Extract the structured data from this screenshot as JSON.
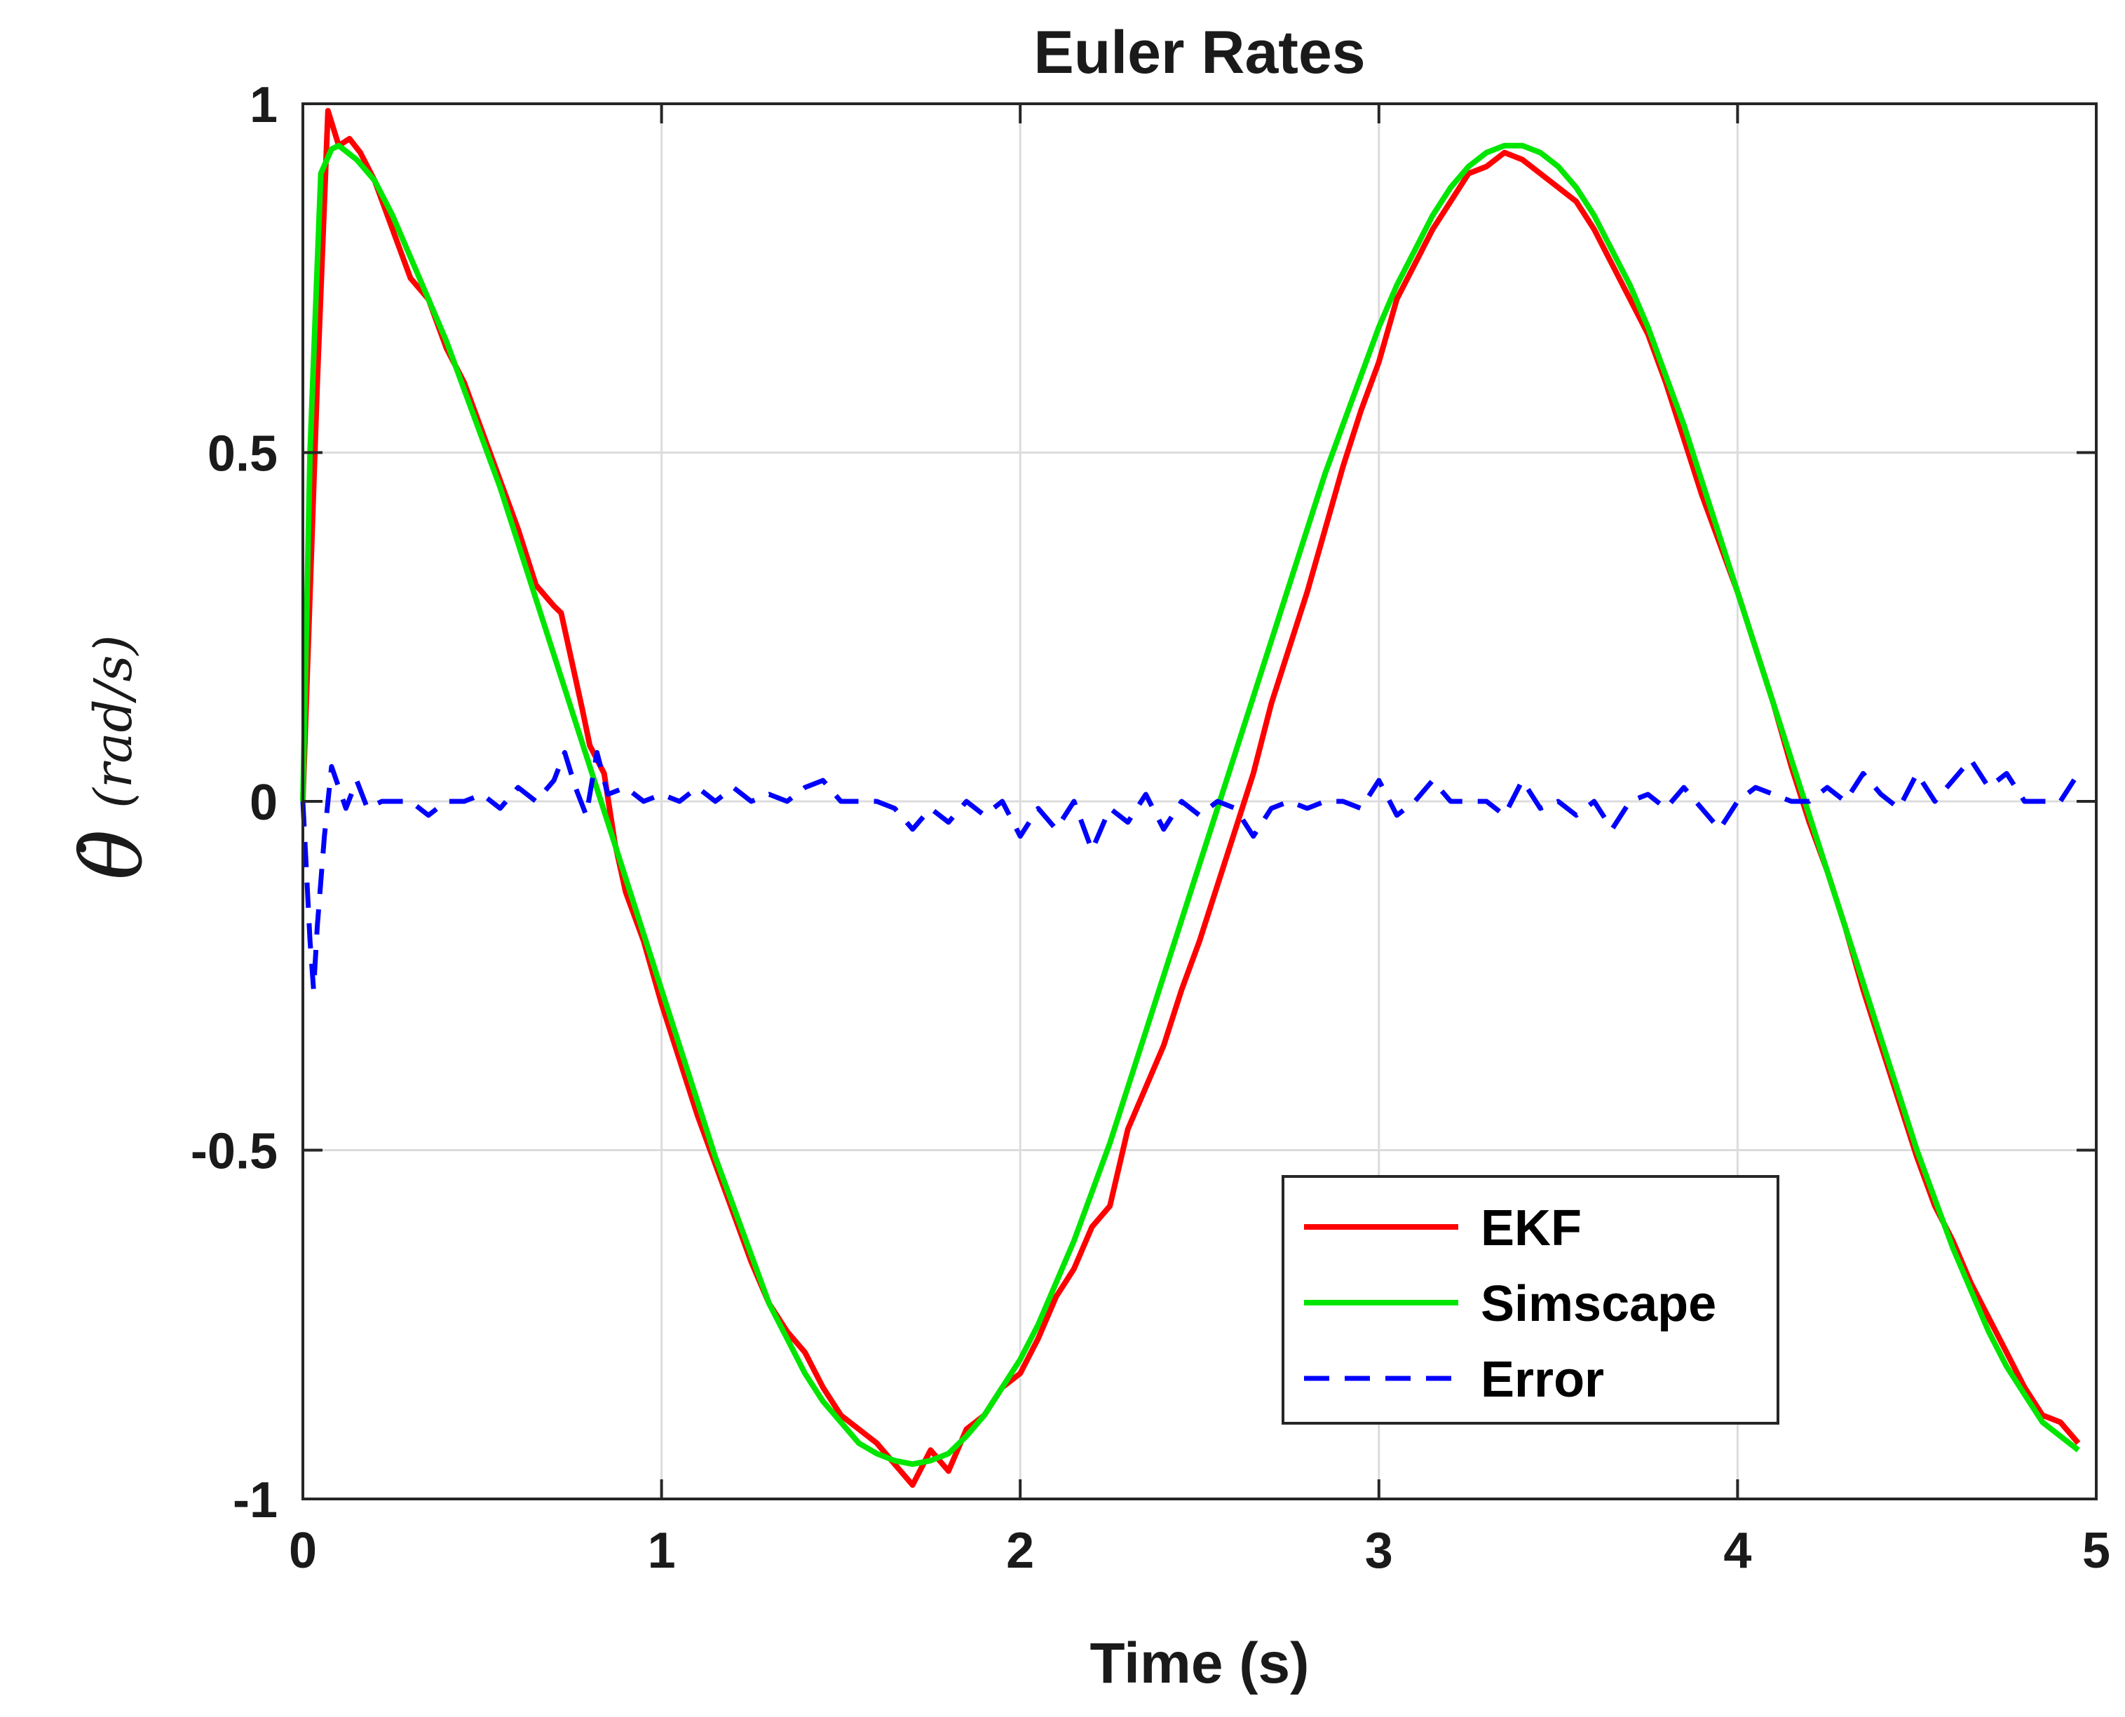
{
  "chart_data": {
    "type": "line",
    "title": "Euler Rates",
    "xlabel": "Time (s)",
    "ylabel": {
      "symbol": "θ̇",
      "units": "(rad/s)"
    },
    "xlim": [
      0,
      5
    ],
    "ylim": [
      -1,
      1
    ],
    "xticks": [
      0,
      1,
      2,
      3,
      4,
      5
    ],
    "xtick_labels": [
      "0",
      "1",
      "2",
      "3",
      "4",
      "5"
    ],
    "yticks": [
      -1,
      -0.5,
      0,
      0.5,
      1
    ],
    "ytick_labels": [
      "-1",
      "-0.5",
      "0",
      "0.5",
      "1"
    ],
    "grid": true,
    "legend_position": "bottom-right",
    "series": [
      {
        "name": "EKF",
        "color": "#ff0000",
        "style": "solid",
        "points": [
          [
            0,
            0
          ],
          [
            0.04,
            0.6
          ],
          [
            0.07,
            0.99
          ],
          [
            0.1,
            0.94
          ],
          [
            0.13,
            0.95
          ],
          [
            0.16,
            0.93
          ],
          [
            0.2,
            0.89
          ],
          [
            0.25,
            0.82
          ],
          [
            0.3,
            0.75
          ],
          [
            0.35,
            0.72
          ],
          [
            0.4,
            0.65
          ],
          [
            0.45,
            0.6
          ],
          [
            0.5,
            0.53
          ],
          [
            0.55,
            0.46
          ],
          [
            0.6,
            0.39
          ],
          [
            0.65,
            0.31
          ],
          [
            0.7,
            0.28
          ],
          [
            0.72,
            0.27
          ],
          [
            0.75,
            0.2
          ],
          [
            0.78,
            0.13
          ],
          [
            0.8,
            0.08
          ],
          [
            0.84,
            0.04
          ],
          [
            0.87,
            -0.06
          ],
          [
            0.9,
            -0.13
          ],
          [
            0.95,
            -0.2
          ],
          [
            1.0,
            -0.29
          ],
          [
            1.05,
            -0.37
          ],
          [
            1.1,
            -0.45
          ],
          [
            1.15,
            -0.52
          ],
          [
            1.2,
            -0.59
          ],
          [
            1.25,
            -0.66
          ],
          [
            1.3,
            -0.72
          ],
          [
            1.35,
            -0.76
          ],
          [
            1.4,
            -0.79
          ],
          [
            1.45,
            -0.84
          ],
          [
            1.5,
            -0.88
          ],
          [
            1.55,
            -0.9
          ],
          [
            1.6,
            -0.92
          ],
          [
            1.65,
            -0.95
          ],
          [
            1.7,
            -0.98
          ],
          [
            1.75,
            -0.93
          ],
          [
            1.8,
            -0.96
          ],
          [
            1.85,
            -0.9
          ],
          [
            1.9,
            -0.88
          ],
          [
            1.95,
            -0.84
          ],
          [
            2.0,
            -0.82
          ],
          [
            2.05,
            -0.77
          ],
          [
            2.1,
            -0.71
          ],
          [
            2.15,
            -0.67
          ],
          [
            2.2,
            -0.61
          ],
          [
            2.25,
            -0.58
          ],
          [
            2.3,
            -0.47
          ],
          [
            2.35,
            -0.41
          ],
          [
            2.4,
            -0.35
          ],
          [
            2.45,
            -0.27
          ],
          [
            2.5,
            -0.2
          ],
          [
            2.55,
            -0.12
          ],
          [
            2.6,
            -0.04
          ],
          [
            2.65,
            0.04
          ],
          [
            2.7,
            0.14
          ],
          [
            2.75,
            0.22
          ],
          [
            2.8,
            0.3
          ],
          [
            2.85,
            0.39
          ],
          [
            2.9,
            0.48
          ],
          [
            2.95,
            0.56
          ],
          [
            3.0,
            0.63
          ],
          [
            3.05,
            0.72
          ],
          [
            3.1,
            0.77
          ],
          [
            3.15,
            0.82
          ],
          [
            3.2,
            0.86
          ],
          [
            3.25,
            0.9
          ],
          [
            3.3,
            0.91
          ],
          [
            3.35,
            0.93
          ],
          [
            3.4,
            0.92
          ],
          [
            3.45,
            0.9
          ],
          [
            3.5,
            0.88
          ],
          [
            3.55,
            0.86
          ],
          [
            3.6,
            0.82
          ],
          [
            3.65,
            0.77
          ],
          [
            3.7,
            0.72
          ],
          [
            3.75,
            0.67
          ],
          [
            3.8,
            0.6
          ],
          [
            3.85,
            0.52
          ],
          [
            3.9,
            0.44
          ],
          [
            3.95,
            0.37
          ],
          [
            4.0,
            0.3
          ],
          [
            4.05,
            0.22
          ],
          [
            4.1,
            0.14
          ],
          [
            4.15,
            0.05
          ],
          [
            4.2,
            -0.03
          ],
          [
            4.25,
            -0.1
          ],
          [
            4.3,
            -0.18
          ],
          [
            4.35,
            -0.27
          ],
          [
            4.4,
            -0.35
          ],
          [
            4.45,
            -0.43
          ],
          [
            4.5,
            -0.51
          ],
          [
            4.55,
            -0.58
          ],
          [
            4.6,
            -0.63
          ],
          [
            4.65,
            -0.69
          ],
          [
            4.7,
            -0.74
          ],
          [
            4.75,
            -0.79
          ],
          [
            4.8,
            -0.84
          ],
          [
            4.85,
            -0.88
          ],
          [
            4.9,
            -0.89
          ],
          [
            4.95,
            -0.92
          ]
        ]
      },
      {
        "name": "Simscape",
        "color": "#00e600",
        "style": "solid",
        "points": [
          [
            0,
            0
          ],
          [
            0.02,
            0.5
          ],
          [
            0.05,
            0.9
          ],
          [
            0.08,
            0.935
          ],
          [
            0.1,
            0.94
          ],
          [
            0.15,
            0.92
          ],
          [
            0.2,
            0.89
          ],
          [
            0.25,
            0.84
          ],
          [
            0.3,
            0.78
          ],
          [
            0.35,
            0.72
          ],
          [
            0.4,
            0.66
          ],
          [
            0.45,
            0.59
          ],
          [
            0.5,
            0.52
          ],
          [
            0.55,
            0.45
          ],
          [
            0.6,
            0.37
          ],
          [
            0.65,
            0.29
          ],
          [
            0.7,
            0.21
          ],
          [
            0.75,
            0.13
          ],
          [
            0.8,
            0.05
          ],
          [
            0.85,
            -0.03
          ],
          [
            0.9,
            -0.11
          ],
          [
            0.95,
            -0.19
          ],
          [
            1.0,
            -0.27
          ],
          [
            1.05,
            -0.35
          ],
          [
            1.1,
            -0.43
          ],
          [
            1.15,
            -0.51
          ],
          [
            1.2,
            -0.58
          ],
          [
            1.25,
            -0.65
          ],
          [
            1.3,
            -0.72
          ],
          [
            1.35,
            -0.77
          ],
          [
            1.4,
            -0.82
          ],
          [
            1.45,
            -0.86
          ],
          [
            1.5,
            -0.89
          ],
          [
            1.55,
            -0.92
          ],
          [
            1.6,
            -0.935
          ],
          [
            1.65,
            -0.945
          ],
          [
            1.7,
            -0.95
          ],
          [
            1.75,
            -0.945
          ],
          [
            1.8,
            -0.935
          ],
          [
            1.85,
            -0.91
          ],
          [
            1.9,
            -0.88
          ],
          [
            1.95,
            -0.84
          ],
          [
            2.0,
            -0.8
          ],
          [
            2.05,
            -0.75
          ],
          [
            2.1,
            -0.69
          ],
          [
            2.15,
            -0.63
          ],
          [
            2.2,
            -0.56
          ],
          [
            2.25,
            -0.49
          ],
          [
            2.3,
            -0.41
          ],
          [
            2.35,
            -0.33
          ],
          [
            2.4,
            -0.25
          ],
          [
            2.45,
            -0.17
          ],
          [
            2.5,
            -0.09
          ],
          [
            2.55,
            -0.01
          ],
          [
            2.6,
            0.07
          ],
          [
            2.65,
            0.15
          ],
          [
            2.7,
            0.23
          ],
          [
            2.75,
            0.31
          ],
          [
            2.8,
            0.39
          ],
          [
            2.85,
            0.47
          ],
          [
            2.9,
            0.54
          ],
          [
            2.95,
            0.61
          ],
          [
            3.0,
            0.68
          ],
          [
            3.05,
            0.74
          ],
          [
            3.1,
            0.79
          ],
          [
            3.15,
            0.84
          ],
          [
            3.2,
            0.88
          ],
          [
            3.25,
            0.91
          ],
          [
            3.3,
            0.93
          ],
          [
            3.35,
            0.94
          ],
          [
            3.4,
            0.94
          ],
          [
            3.45,
            0.93
          ],
          [
            3.5,
            0.91
          ],
          [
            3.55,
            0.88
          ],
          [
            3.6,
            0.84
          ],
          [
            3.65,
            0.79
          ],
          [
            3.7,
            0.74
          ],
          [
            3.75,
            0.68
          ],
          [
            3.8,
            0.61
          ],
          [
            3.85,
            0.54
          ],
          [
            3.9,
            0.46
          ],
          [
            3.95,
            0.38
          ],
          [
            4.0,
            0.3
          ],
          [
            4.05,
            0.22
          ],
          [
            4.1,
            0.14
          ],
          [
            4.15,
            0.06
          ],
          [
            4.2,
            -0.02
          ],
          [
            4.25,
            -0.1
          ],
          [
            4.3,
            -0.18
          ],
          [
            4.35,
            -0.26
          ],
          [
            4.4,
            -0.34
          ],
          [
            4.45,
            -0.42
          ],
          [
            4.5,
            -0.5
          ],
          [
            4.55,
            -0.57
          ],
          [
            4.6,
            -0.64
          ],
          [
            4.65,
            -0.7
          ],
          [
            4.7,
            -0.76
          ],
          [
            4.75,
            -0.81
          ],
          [
            4.8,
            -0.85
          ],
          [
            4.85,
            -0.89
          ],
          [
            4.9,
            -0.91
          ],
          [
            4.95,
            -0.93
          ]
        ]
      },
      {
        "name": "Error",
        "color": "#0000ff",
        "style": "dashed",
        "points": [
          [
            0,
            0
          ],
          [
            0.01,
            -0.1
          ],
          [
            0.02,
            -0.2
          ],
          [
            0.03,
            -0.27
          ],
          [
            0.04,
            -0.18
          ],
          [
            0.06,
            -0.05
          ],
          [
            0.08,
            0.05
          ],
          [
            0.1,
            0.02
          ],
          [
            0.12,
            -0.01
          ],
          [
            0.15,
            0.03
          ],
          [
            0.18,
            -0.01
          ],
          [
            0.22,
            0.0
          ],
          [
            0.26,
            0.0
          ],
          [
            0.3,
            0.0
          ],
          [
            0.35,
            -0.02
          ],
          [
            0.4,
            0.0
          ],
          [
            0.45,
            0.0
          ],
          [
            0.5,
            0.01
          ],
          [
            0.55,
            -0.01
          ],
          [
            0.6,
            0.02
          ],
          [
            0.65,
            0.0
          ],
          [
            0.7,
            0.03
          ],
          [
            0.73,
            0.07
          ],
          [
            0.76,
            0.02
          ],
          [
            0.79,
            -0.02
          ],
          [
            0.82,
            0.07
          ],
          [
            0.85,
            0.01
          ],
          [
            0.9,
            0.02
          ],
          [
            0.95,
            0.0
          ],
          [
            1.0,
            0.01
          ],
          [
            1.05,
            0.0
          ],
          [
            1.1,
            0.02
          ],
          [
            1.15,
            0.0
          ],
          [
            1.2,
            0.02
          ],
          [
            1.25,
            0.0
          ],
          [
            1.3,
            0.01
          ],
          [
            1.35,
            0.0
          ],
          [
            1.4,
            0.02
          ],
          [
            1.45,
            0.03
          ],
          [
            1.5,
            0.0
          ],
          [
            1.55,
            0.0
          ],
          [
            1.6,
            0.0
          ],
          [
            1.65,
            -0.01
          ],
          [
            1.7,
            -0.04
          ],
          [
            1.75,
            -0.01
          ],
          [
            1.8,
            -0.03
          ],
          [
            1.85,
            0.0
          ],
          [
            1.9,
            -0.02
          ],
          [
            1.95,
            0.0
          ],
          [
            2.0,
            -0.05
          ],
          [
            2.05,
            -0.01
          ],
          [
            2.1,
            -0.04
          ],
          [
            2.15,
            0.0
          ],
          [
            2.2,
            -0.07
          ],
          [
            2.25,
            -0.01
          ],
          [
            2.3,
            -0.03
          ],
          [
            2.35,
            0.01
          ],
          [
            2.4,
            -0.04
          ],
          [
            2.45,
            0.0
          ],
          [
            2.5,
            -0.02
          ],
          [
            2.55,
            0.0
          ],
          [
            2.6,
            -0.01
          ],
          [
            2.65,
            -0.05
          ],
          [
            2.7,
            -0.01
          ],
          [
            2.75,
            0.0
          ],
          [
            2.8,
            -0.01
          ],
          [
            2.85,
            0.0
          ],
          [
            2.9,
            0.0
          ],
          [
            2.95,
            -0.01
          ],
          [
            3.0,
            0.03
          ],
          [
            3.05,
            -0.02
          ],
          [
            3.1,
            0.0
          ],
          [
            3.15,
            0.03
          ],
          [
            3.2,
            0.0
          ],
          [
            3.25,
            0.0
          ],
          [
            3.3,
            0.0
          ],
          [
            3.35,
            -0.02
          ],
          [
            3.4,
            0.03
          ],
          [
            3.45,
            -0.01
          ],
          [
            3.5,
            0.0
          ],
          [
            3.55,
            -0.02
          ],
          [
            3.6,
            0.0
          ],
          [
            3.65,
            -0.04
          ],
          [
            3.7,
            0.0
          ],
          [
            3.75,
            0.01
          ],
          [
            3.8,
            -0.01
          ],
          [
            3.85,
            0.02
          ],
          [
            3.9,
            -0.01
          ],
          [
            3.95,
            -0.04
          ],
          [
            4.0,
            0.0
          ],
          [
            4.05,
            0.02
          ],
          [
            4.1,
            0.01
          ],
          [
            4.15,
            0.0
          ],
          [
            4.2,
            0.0
          ],
          [
            4.25,
            0.02
          ],
          [
            4.3,
            0.0
          ],
          [
            4.35,
            0.04
          ],
          [
            4.4,
            0.01
          ],
          [
            4.45,
            -0.01
          ],
          [
            4.5,
            0.04
          ],
          [
            4.55,
            0.0
          ],
          [
            4.6,
            0.03
          ],
          [
            4.65,
            0.06
          ],
          [
            4.7,
            0.02
          ],
          [
            4.75,
            0.04
          ],
          [
            4.8,
            0.0
          ],
          [
            4.85,
            0.0
          ],
          [
            4.9,
            0.0
          ],
          [
            4.95,
            0.04
          ]
        ]
      }
    ]
  }
}
